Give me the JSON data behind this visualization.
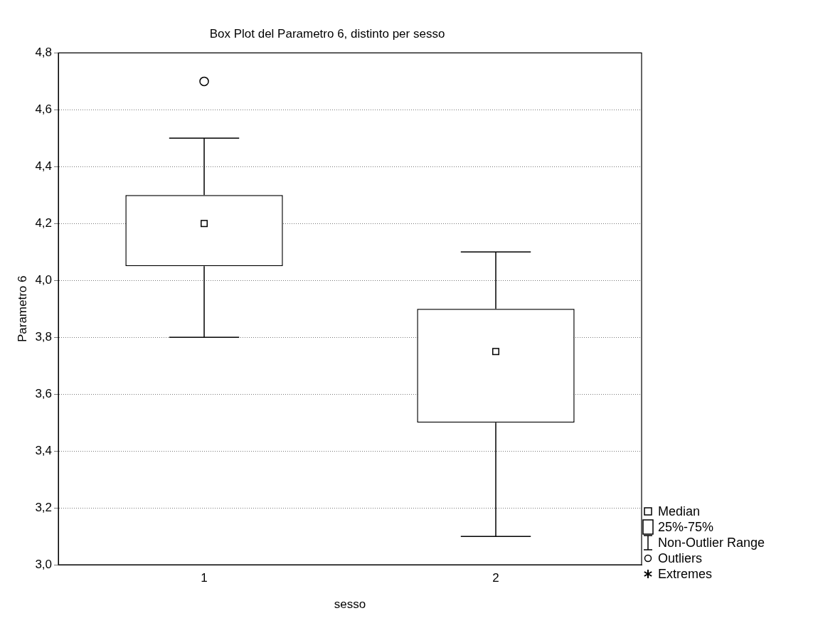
{
  "chart_data": {
    "type": "box",
    "title": "Box Plot del Parametro 6, distinto per sesso",
    "xlabel": "sesso",
    "ylabel": "Parametro 6",
    "categories": [
      "1",
      "2"
    ],
    "boxes": [
      {
        "low": 3.8,
        "q1": 4.05,
        "median": 4.2,
        "q3": 4.3,
        "high": 4.5,
        "outliers": [
          4.7
        ]
      },
      {
        "low": 3.1,
        "q1": 3.5,
        "median": 3.75,
        "q3": 3.9,
        "high": 4.1
      }
    ],
    "color": "#000000",
    "ylim": [
      3.0,
      4.8
    ],
    "yticks": [
      {
        "value": 3.0,
        "label": "3,0"
      },
      {
        "value": 3.2,
        "label": "3,2"
      },
      {
        "value": 3.4,
        "label": "3,4"
      },
      {
        "value": 3.6,
        "label": "3,6"
      },
      {
        "value": 3.8,
        "label": "3,8"
      },
      {
        "value": 4.0,
        "label": "4,0"
      },
      {
        "value": 4.2,
        "label": "4,2"
      },
      {
        "value": 4.4,
        "label": "4,4"
      },
      {
        "value": 4.6,
        "label": "4,6"
      },
      {
        "value": 4.8,
        "label": "4,8"
      }
    ],
    "grid": "y",
    "marker": "square",
    "annotations": [
      "Median",
      "25%-75%",
      "Non-Outlier Range",
      "Outliers",
      "Extremes"
    ]
  }
}
